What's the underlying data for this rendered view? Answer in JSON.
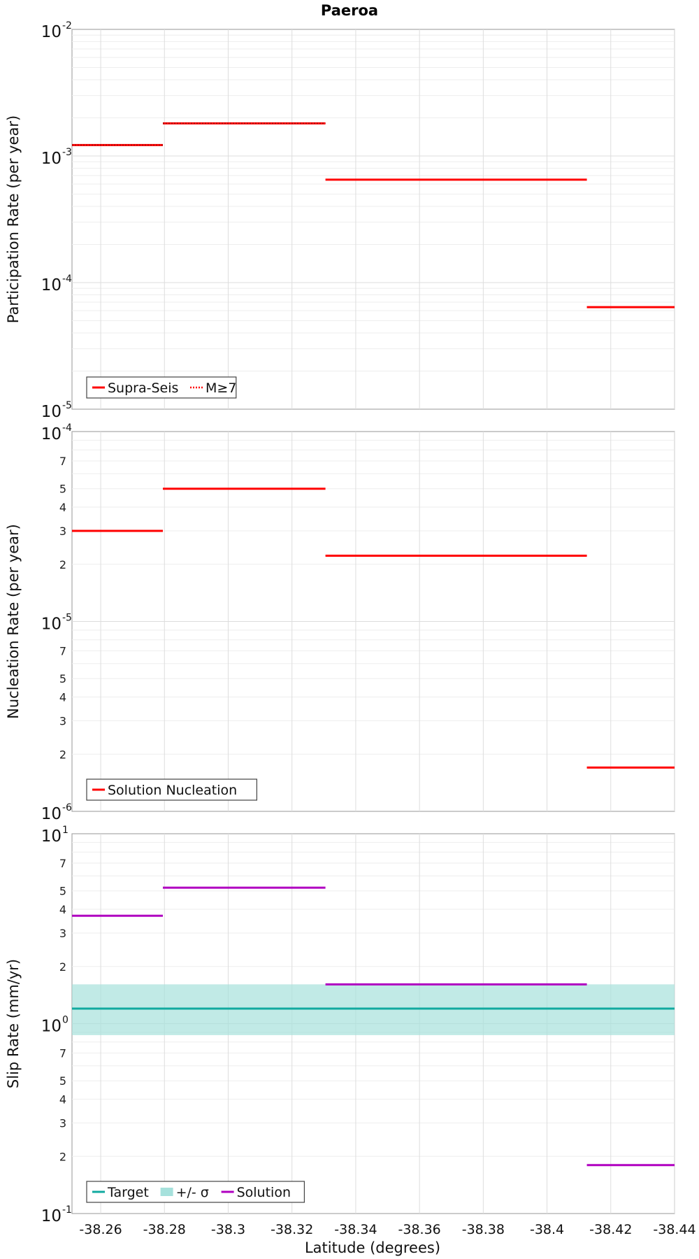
{
  "figure": {
    "title": "Paeroa",
    "xlabel": "Latitude (degrees)",
    "x_ticks": [
      "-38.26",
      "-38.28",
      "-38.3",
      "-38.32",
      "-38.34",
      "-38.36",
      "-38.38",
      "-38.4",
      "-38.42",
      "-38.44"
    ]
  },
  "chart_data": [
    {
      "type": "line",
      "ylabel": "Participation Rate (per year)",
      "xlim": [
        -38.251,
        -38.44
      ],
      "y_scale": "log",
      "ylim_exponents": [
        -5,
        -2
      ],
      "y_major_ticks": [
        "-5",
        "-4",
        "-3",
        "-2"
      ],
      "y_minor_labels": [],
      "grid": true,
      "legend_position": "bottom-left",
      "series": [
        {
          "name": "Supra-Seis",
          "style": "solid",
          "color": "#ff0000",
          "segments": [
            {
              "x": [
                -38.251,
                -38.2795
              ],
              "y": 0.00122
            },
            {
              "x": [
                -38.2795,
                -38.3305
              ],
              "y": 0.00181
            },
            {
              "x": [
                -38.3305,
                -38.4125
              ],
              "y": 0.00065
            },
            {
              "x": [
                -38.4125,
                -38.44
              ],
              "y": 6.4e-05
            }
          ]
        },
        {
          "name": "M≥7",
          "style": "dotted",
          "color": "#ff0000",
          "segments": [
            {
              "x": [
                -38.251,
                -38.2795
              ],
              "y": 0.00122
            },
            {
              "x": [
                -38.2795,
                -38.3305
              ],
              "y": 0.00181
            }
          ]
        }
      ]
    },
    {
      "type": "line",
      "ylabel": "Nucleation Rate (per year)",
      "xlim": [
        -38.251,
        -38.44
      ],
      "y_scale": "log",
      "ylim_exponents": [
        -6,
        -4
      ],
      "y_major_ticks": [
        "-6",
        "-5",
        "-4"
      ],
      "y_minor_labels": [
        "2",
        "3",
        "4",
        "5",
        "7"
      ],
      "grid": true,
      "legend_position": "bottom-left",
      "series": [
        {
          "name": "Solution Nucleation",
          "style": "solid",
          "color": "#ff0000",
          "segments": [
            {
              "x": [
                -38.251,
                -38.2795
              ],
              "y": 3e-05
            },
            {
              "x": [
                -38.2795,
                -38.3305
              ],
              "y": 5e-05
            },
            {
              "x": [
                -38.3305,
                -38.4125
              ],
              "y": 2.22e-05
            },
            {
              "x": [
                -38.4125,
                -38.44
              ],
              "y": 1.7e-06
            }
          ]
        }
      ]
    },
    {
      "type": "line",
      "ylabel": "Slip Rate (mm/yr)",
      "xlim": [
        -38.251,
        -38.44
      ],
      "y_scale": "log",
      "ylim_exponents": [
        -1,
        1
      ],
      "y_major_ticks": [
        "-1",
        "0",
        "1"
      ],
      "y_minor_labels": [
        "2",
        "3",
        "4",
        "5",
        "7"
      ],
      "grid": true,
      "legend_position": "bottom-left",
      "series": [
        {
          "name": "Target",
          "style": "solid",
          "color": "#12aaa0",
          "segments": [
            {
              "x": [
                -38.251,
                -38.44
              ],
              "y": 1.2
            }
          ]
        },
        {
          "name": "+/- σ",
          "style": "band",
          "color": "#a6e1dc",
          "band": {
            "x": [
              -38.251,
              -38.44
            ],
            "lower": 0.87,
            "upper": 1.61
          }
        },
        {
          "name": "Solution",
          "style": "solid",
          "color": "#b000c0",
          "segments": [
            {
              "x": [
                -38.251,
                -38.2795
              ],
              "y": 3.7
            },
            {
              "x": [
                -38.2795,
                -38.3305
              ],
              "y": 5.2
            },
            {
              "x": [
                -38.3305,
                -38.4125
              ],
              "y": 1.61
            },
            {
              "x": [
                -38.4125,
                -38.44
              ],
              "y": 0.18
            }
          ]
        }
      ]
    }
  ]
}
